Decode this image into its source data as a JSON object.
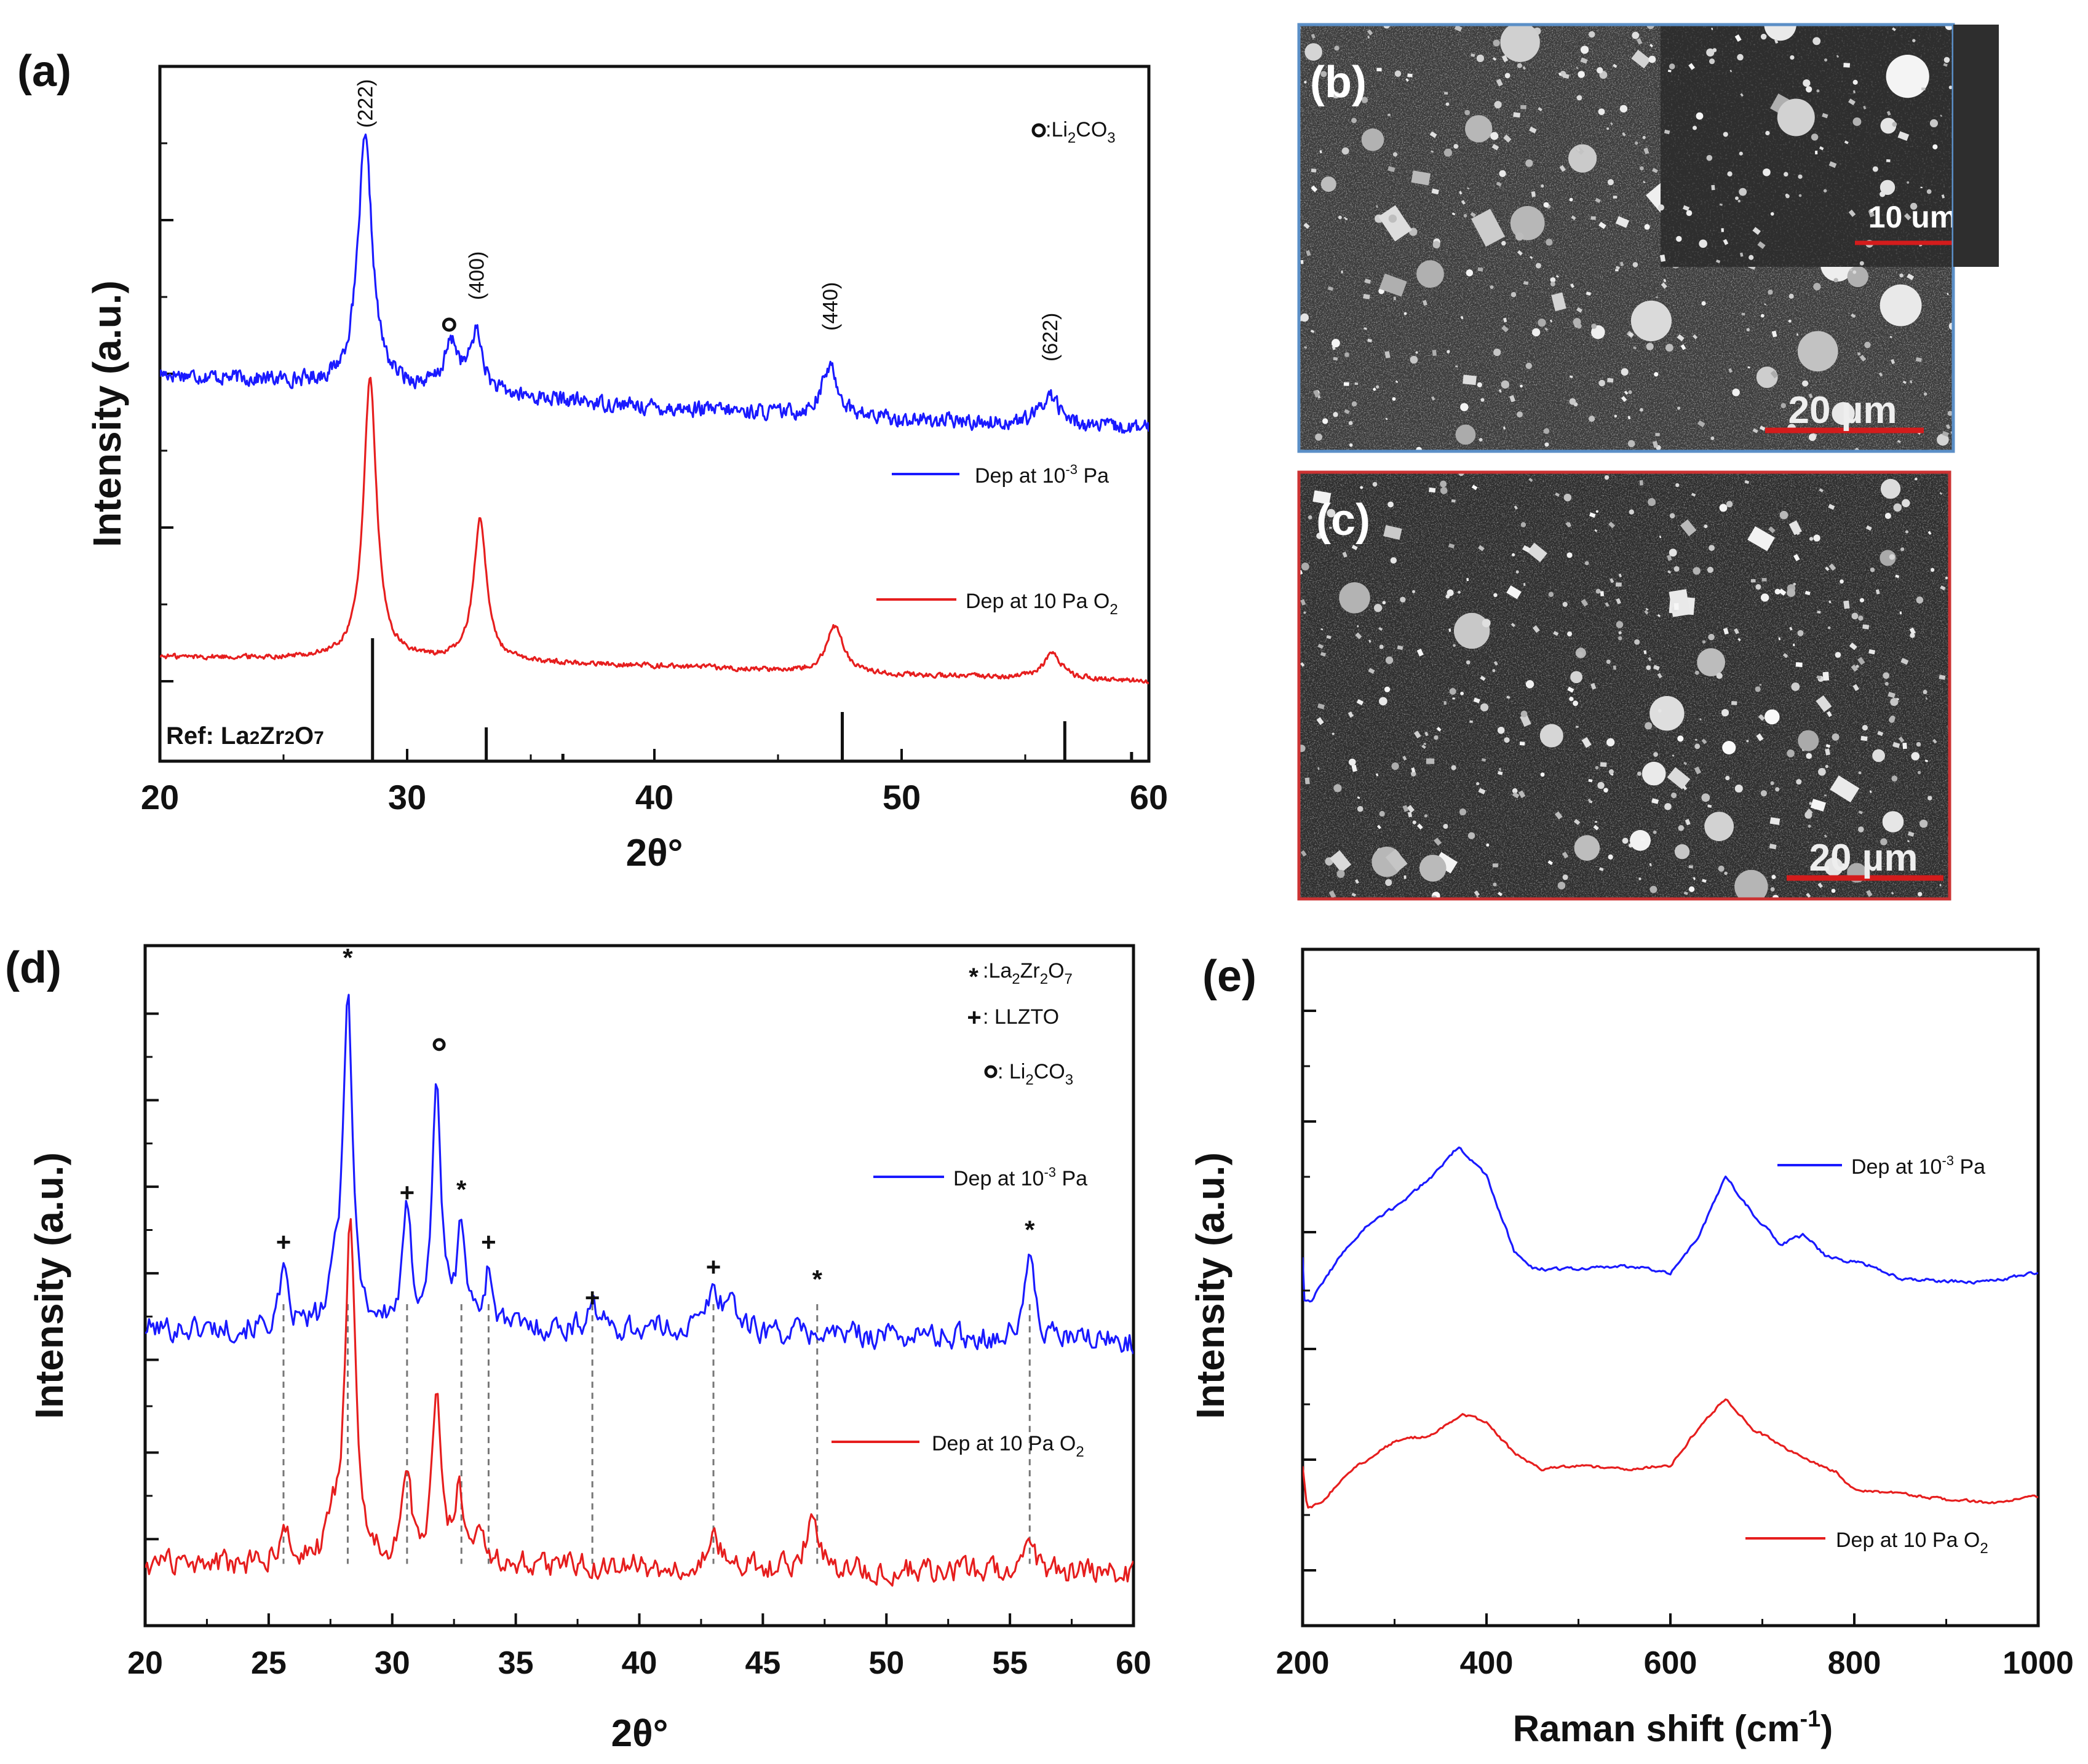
{
  "colors": {
    "blue": "#1a1aff",
    "red": "#e61e1e",
    "sem_b_frame": "#5b8fc7",
    "sem_c_frame": "#cc3333",
    "scalebar": "#d41c1c",
    "axis": "#111111"
  },
  "chart_data": [
    {
      "id": "a",
      "type": "line",
      "panel_label": "(a)",
      "xlabel": "2θ°",
      "ylabel": "Intensity (a.u.)",
      "xlim": [
        20,
        60
      ],
      "ylim": [
        0,
        11.3
      ],
      "x_ticks": [
        20,
        30,
        40,
        50,
        60
      ],
      "x_tick_labels": [
        "20",
        "30",
        "40",
        "50",
        "60"
      ],
      "y_tick_values": [
        1.3,
        3.8,
        6.3,
        8.8,
        11.3
      ],
      "grid": false,
      "legend": [
        {
          "series": "blue",
          "label": "Dep at 10",
          "sup": "-3",
          "rest": " Pa"
        },
        {
          "series": "red",
          "label": "Dep at 10 Pa O",
          "sub": "2",
          "rest": ""
        }
      ],
      "legend_position": "right",
      "key": {
        "symbol": "o",
        "text": ":Li",
        "sub1": "2",
        "mid": "CO",
        "sub2": "3"
      },
      "series": [
        {
          "name": "Dep at 10^-3 Pa",
          "color": "blue",
          "baseline": [
            [
              20,
              6.3
            ],
            [
              30,
              6.05
            ],
            [
              40,
              5.75
            ],
            [
              50,
              5.55
            ],
            [
              60,
              5.4
            ]
          ],
          "noise": 0.18,
          "peaks": [
            [
              28.3,
              4.0,
              0.35
            ],
            [
              31.8,
              0.75,
              0.35
            ],
            [
              32.8,
              0.95,
              0.3
            ],
            [
              47.1,
              0.8,
              0.4
            ],
            [
              56.0,
              0.5,
              0.45
            ]
          ]
        },
        {
          "name": "Dep at 10 Pa O2",
          "color": "red",
          "baseline": [
            [
              20,
              1.7
            ],
            [
              30,
              1.65
            ],
            [
              40,
              1.55
            ],
            [
              50,
              1.4
            ],
            [
              60,
              1.3
            ]
          ],
          "noise": 0.06,
          "peaks": [
            [
              28.5,
              4.55,
              0.32
            ],
            [
              32.95,
              2.3,
              0.32
            ],
            [
              47.3,
              0.75,
              0.42
            ],
            [
              56.1,
              0.4,
              0.45
            ]
          ]
        }
      ],
      "peak_labels": [
        {
          "x": 28.3,
          "y": 10.3,
          "text": "(222)"
        },
        {
          "x": 32.8,
          "y": 7.5,
          "text": "(400)"
        },
        {
          "x": 47.1,
          "y": 7.0,
          "text": "(440)"
        },
        {
          "x": 56.0,
          "y": 6.5,
          "text": "(622)"
        }
      ],
      "markers": [
        {
          "x": 31.7,
          "y": 7.1,
          "symbol": "o"
        }
      ],
      "reference": {
        "label_prefix": "Ref: La",
        "s1": "2",
        "mid": "Zr",
        "s2": "2",
        "end": "O",
        "s3": "7",
        "lines": [
          [
            28.6,
            2.0
          ],
          [
            33.2,
            0.55
          ],
          [
            36.3,
            0.12
          ],
          [
            47.6,
            0.8
          ],
          [
            56.6,
            0.65
          ],
          [
            59.3,
            0.15
          ]
        ]
      }
    },
    {
      "id": "d",
      "type": "line",
      "panel_label": "(d)",
      "xlabel": "2θ°",
      "ylabel": "Intensity (a.u.)",
      "xlim": [
        20,
        60
      ],
      "ylim": [
        0,
        11.0
      ],
      "x_ticks": [
        20,
        25,
        30,
        35,
        40,
        45,
        50,
        55,
        60
      ],
      "x_tick_labels": [
        "20",
        "25",
        "30",
        "35",
        "40",
        "45",
        "50",
        "55",
        "60"
      ],
      "y_tick_values": [
        1.4,
        2.8,
        4.3,
        5.7,
        7.1,
        8.5,
        9.9
      ],
      "grid": false,
      "legend": [
        {
          "series": "blue",
          "label": "Dep at 10",
          "sup": "-3",
          "rest": " Pa"
        },
        {
          "series": "red",
          "label": "Dep at 10 Pa O",
          "sub": "2",
          "rest": ""
        }
      ],
      "legend_position": "right",
      "key_items": [
        {
          "symbol": "*",
          "text": ":La",
          "parts": [
            [
              "2",
              "sub"
            ],
            [
              "Zr",
              ""
            ],
            [
              "2",
              "sub"
            ],
            [
              "O",
              ""
            ],
            [
              "7",
              "sub"
            ]
          ]
        },
        {
          "symbol": "+",
          "text": ": LLZTO",
          "parts": []
        },
        {
          "symbol": "o",
          "text": ": Li",
          "parts": [
            [
              "2",
              "sub"
            ],
            [
              "CO",
              ""
            ],
            [
              "3",
              "sub"
            ]
          ]
        }
      ],
      "series": [
        {
          "name": "Dep at 10^-3 Pa",
          "color": "blue",
          "baseline": [
            [
              20,
              4.8
            ],
            [
              40,
              4.8
            ],
            [
              60,
              4.6
            ]
          ],
          "noise": 0.3,
          "peaks": [
            [
              25.6,
              0.8,
              0.2
            ],
            [
              27.7,
              0.6,
              0.2
            ],
            [
              28.2,
              5.5,
              0.22
            ],
            [
              30.6,
              1.8,
              0.2
            ],
            [
              31.8,
              4.0,
              0.2
            ],
            [
              32.8,
              1.6,
              0.2
            ],
            [
              33.9,
              0.9,
              0.2
            ],
            [
              38.1,
              0.5,
              0.2
            ],
            [
              43.0,
              0.6,
              0.3
            ],
            [
              43.7,
              0.5,
              0.3
            ],
            [
              55.8,
              1.5,
              0.2
            ]
          ]
        },
        {
          "name": "Dep at 10 Pa O2",
          "color": "red",
          "baseline": [
            [
              20,
              1.0
            ],
            [
              40,
              0.95
            ],
            [
              60,
              0.85
            ]
          ],
          "noise": 0.3,
          "peaks": [
            [
              25.6,
              0.7,
              0.2
            ],
            [
              27.6,
              0.6,
              0.2
            ],
            [
              28.3,
              5.4,
              0.25
            ],
            [
              30.6,
              1.2,
              0.25
            ],
            [
              31.8,
              2.8,
              0.22
            ],
            [
              32.7,
              1.2,
              0.2
            ],
            [
              33.6,
              0.6,
              0.2
            ],
            [
              43.0,
              0.5,
              0.3
            ],
            [
              47.0,
              0.8,
              0.3
            ],
            [
              55.8,
              0.7,
              0.2
            ]
          ]
        }
      ],
      "guide_lines": [
        25.6,
        28.2,
        30.6,
        32.8,
        33.9,
        38.1,
        43.0,
        47.2,
        55.8
      ],
      "annotations": [
        {
          "x": 25.6,
          "y": 6.2,
          "text": "+"
        },
        {
          "x": 28.2,
          "y": 10.8,
          "text": "*"
        },
        {
          "x": 30.6,
          "y": 7.0,
          "text": "+"
        },
        {
          "x": 31.9,
          "y": 9.4,
          "text": "o"
        },
        {
          "x": 32.8,
          "y": 7.05,
          "text": "*"
        },
        {
          "x": 33.9,
          "y": 6.2,
          "text": "+"
        },
        {
          "x": 38.1,
          "y": 5.3,
          "text": "+"
        },
        {
          "x": 43.0,
          "y": 5.8,
          "text": "+"
        },
        {
          "x": 47.2,
          "y": 5.6,
          "text": "*"
        },
        {
          "x": 55.8,
          "y": 6.4,
          "text": "*"
        }
      ]
    },
    {
      "id": "e",
      "type": "line",
      "panel_label": "(e)",
      "xlabel": "Raman shift (cm",
      "xlabel_sup": "-1",
      "xlabel_end": ")",
      "ylabel": "Intensity (a.u.)",
      "xlim": [
        200,
        1000
      ],
      "ylim": [
        0,
        11.0
      ],
      "x_ticks": [
        200,
        400,
        600,
        800,
        1000
      ],
      "x_tick_labels": [
        "200",
        "400",
        "600",
        "800",
        "1000"
      ],
      "y_tick_values": [
        0.9,
        2.7,
        4.5,
        6.4,
        8.2,
        10.0
      ],
      "grid": false,
      "legend": [
        {
          "series": "blue",
          "label": "Dep at 10",
          "sup": "-3",
          "rest": " Pa"
        },
        {
          "series": "red",
          "label": "Dep at 10 Pa O",
          "sub": "2",
          "rest": ""
        }
      ],
      "legend_position": "right",
      "series": [
        {
          "name": "Dep at 10^-3 Pa",
          "color": "blue",
          "points": [
            [
              200,
              6.0
            ],
            [
              202,
              5.3
            ],
            [
              210,
              5.3
            ],
            [
              240,
              6.0
            ],
            [
              270,
              6.5
            ],
            [
              300,
              6.8
            ],
            [
              340,
              7.3
            ],
            [
              370,
              7.8
            ],
            [
              400,
              7.3
            ],
            [
              430,
              6.1
            ],
            [
              450,
              5.8
            ],
            [
              500,
              5.8
            ],
            [
              550,
              5.85
            ],
            [
              600,
              5.75
            ],
            [
              630,
              6.3
            ],
            [
              660,
              7.3
            ],
            [
              690,
              6.7
            ],
            [
              720,
              6.2
            ],
            [
              745,
              6.35
            ],
            [
              770,
              6.0
            ],
            [
              820,
              5.85
            ],
            [
              850,
              5.65
            ],
            [
              900,
              5.6
            ],
            [
              950,
              5.6
            ],
            [
              1000,
              5.75
            ]
          ],
          "noise": 0.05
        },
        {
          "name": "Dep at 10 Pa O2",
          "color": "red",
          "points": [
            [
              200,
              2.6
            ],
            [
              205,
              1.9
            ],
            [
              220,
              2.0
            ],
            [
              250,
              2.5
            ],
            [
              300,
              3.0
            ],
            [
              340,
              3.1
            ],
            [
              375,
              3.45
            ],
            [
              400,
              3.3
            ],
            [
              430,
              2.8
            ],
            [
              460,
              2.55
            ],
            [
              500,
              2.6
            ],
            [
              550,
              2.55
            ],
            [
              600,
              2.6
            ],
            [
              630,
              3.2
            ],
            [
              660,
              3.7
            ],
            [
              690,
              3.2
            ],
            [
              740,
              2.75
            ],
            [
              780,
              2.5
            ],
            [
              800,
              2.2
            ],
            [
              850,
              2.15
            ],
            [
              900,
              2.05
            ],
            [
              950,
              2.0
            ],
            [
              1000,
              2.1
            ]
          ],
          "noise": 0.04
        }
      ]
    }
  ],
  "sem": {
    "b": {
      "panel_label": "(b)",
      "scalebar_label": "20 µm",
      "inset_scalebar_label": "10 um"
    },
    "c": {
      "panel_label": "(c)",
      "scalebar_label": "20 µm"
    }
  }
}
